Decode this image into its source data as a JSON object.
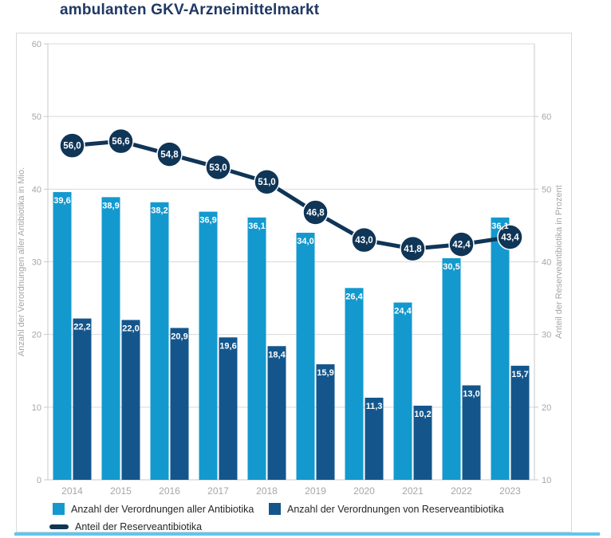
{
  "title": "ambulanten GKV-Arzneimittelmarkt",
  "colors": {
    "title": "#1F3864",
    "bar_light": "#1399CE",
    "bar_dark": "#14568C",
    "line": "#0F3557",
    "grid": "#D9D9D9",
    "plot_border": "#C9C9C9",
    "axis_text": "#A6A6A6",
    "legend_text": "#262626",
    "bar_label_text": "#FFFFFF",
    "bottom_rule": "#63C5EC"
  },
  "chart_data": {
    "type": "bar",
    "subtype": "grouped-bars-with-line",
    "categories": [
      "2014",
      "2015",
      "2016",
      "2017",
      "2018",
      "2019",
      "2020",
      "2021",
      "2022",
      "2023"
    ],
    "series": [
      {
        "name": "Anzahl der Verordnungen aller Antibiotika",
        "type": "bar",
        "axis": "left",
        "color_key": "bar_light",
        "values": [
          39.6,
          38.9,
          38.2,
          36.9,
          36.1,
          34.0,
          26.4,
          24.4,
          30.5,
          36.1
        ]
      },
      {
        "name": "Anzahl der Verordnungen von Reserveantibiotika",
        "type": "bar",
        "axis": "left",
        "color_key": "bar_dark",
        "values": [
          22.2,
          22.0,
          20.9,
          19.6,
          18.4,
          15.9,
          11.3,
          10.2,
          13.0,
          15.7
        ]
      },
      {
        "name": "Anteil der Reserveantibiotika",
        "type": "line",
        "axis": "right",
        "color_key": "line",
        "values": [
          56.0,
          56.6,
          54.8,
          53.0,
          51.0,
          46.8,
          43.0,
          41.8,
          42.4,
          43.4
        ]
      }
    ],
    "left_axis": {
      "label": "Anzahl der Verordnungen aller Antibiotika in Mio.",
      "min": 0,
      "max": 60,
      "ticks": [
        0,
        10,
        20,
        30,
        40,
        50,
        60
      ]
    },
    "right_axis": {
      "label": "Anteil der Reserveantibiotika in Prozent",
      "min": 10,
      "max": 70,
      "ticks": [
        10,
        20,
        30,
        40,
        50,
        60
      ]
    },
    "grid": true,
    "legend_position": "bottom",
    "decimal_separator": ","
  },
  "legend": {
    "items": [
      {
        "label": "Anzahl der Verordnungen aller Antibiotika",
        "swatch": "square",
        "color_key": "bar_light"
      },
      {
        "label": "Anzahl der Verordnungen von Reserveantibiotika",
        "swatch": "square",
        "color_key": "bar_dark"
      },
      {
        "label": "Anteil der Reserveantibiotika",
        "swatch": "line",
        "color_key": "line"
      }
    ]
  }
}
